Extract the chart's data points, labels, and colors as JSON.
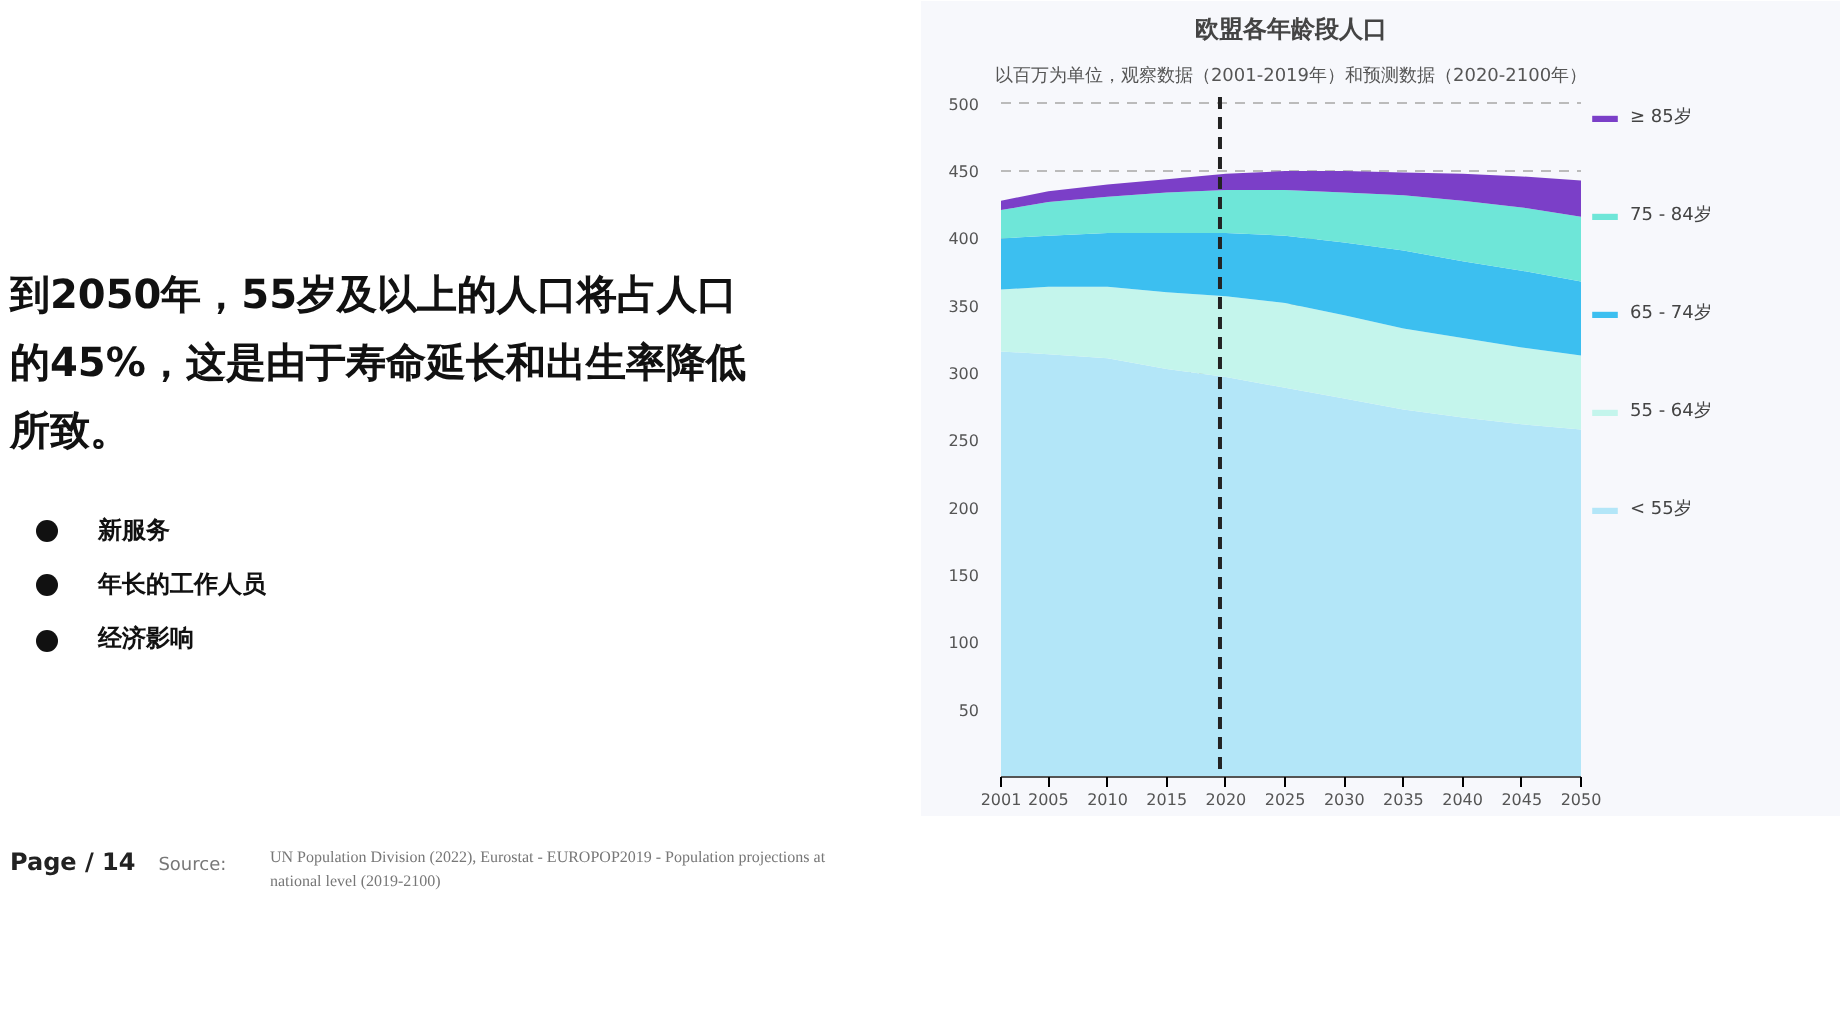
{
  "chart_data": {
    "type": "area",
    "stacked": true,
    "title": "欧盟各年龄段人口",
    "subtitle": "以百万为单位，观察数据（2001-2019年）和预测数据（2020-2100年）",
    "x": [
      2001,
      2005,
      2010,
      2015,
      2020,
      2025,
      2030,
      2035,
      2040,
      2045,
      2050
    ],
    "series": [
      {
        "name": "< 55岁",
        "color": "#b3e6f8",
        "values": [
          316,
          314,
          311,
          303,
          297,
          289,
          281,
          273,
          267,
          262,
          258
        ]
      },
      {
        "name": "55 - 64岁",
        "color": "#c4f5ec",
        "values": [
          46,
          50,
          53,
          57,
          60,
          63,
          62,
          60,
          59,
          57,
          55
        ]
      },
      {
        "name": "65 - 74岁",
        "color": "#3cbff0",
        "values": [
          38,
          38,
          40,
          44,
          47,
          50,
          54,
          58,
          57,
          57,
          55
        ]
      },
      {
        "name": "75 - 84岁",
        "color": "#6ee6d8",
        "values": [
          21,
          25,
          27,
          30,
          32,
          34,
          37,
          41,
          45,
          47,
          48
        ]
      },
      {
        "name": "≥ 85岁",
        "color": "#7b3fc8",
        "values": [
          7,
          8,
          9,
          10,
          12,
          14,
          16,
          17,
          20,
          23,
          27
        ]
      }
    ],
    "xlim": [
      2001,
      2050
    ],
    "xticks": [
      2001,
      2005,
      2010,
      2015,
      2020,
      2025,
      2030,
      2035,
      2040,
      2045,
      2050
    ],
    "ylim": [
      0,
      505
    ],
    "yticks": [
      50,
      100,
      150,
      200,
      250,
      300,
      350,
      400,
      450,
      500
    ],
    "grid": "y",
    "legend": "right",
    "ref_lines": [
      {
        "axis": "x",
        "value": 2019.5,
        "label": null,
        "color": "#222222",
        "line_style": "dashed"
      }
    ],
    "annotations": [
      "到2050年，55岁及以上的人口将占人口的45%，这是由于寿命延长和出生率降低所致。",
      "新服务",
      "年长的工作人员",
      "经济影响",
      "Page / 14",
      "Source:",
      "UN Population Division (2022), Eurostat - EUROPOP2019 - Population projections at national level (2019-2100)"
    ]
  }
}
